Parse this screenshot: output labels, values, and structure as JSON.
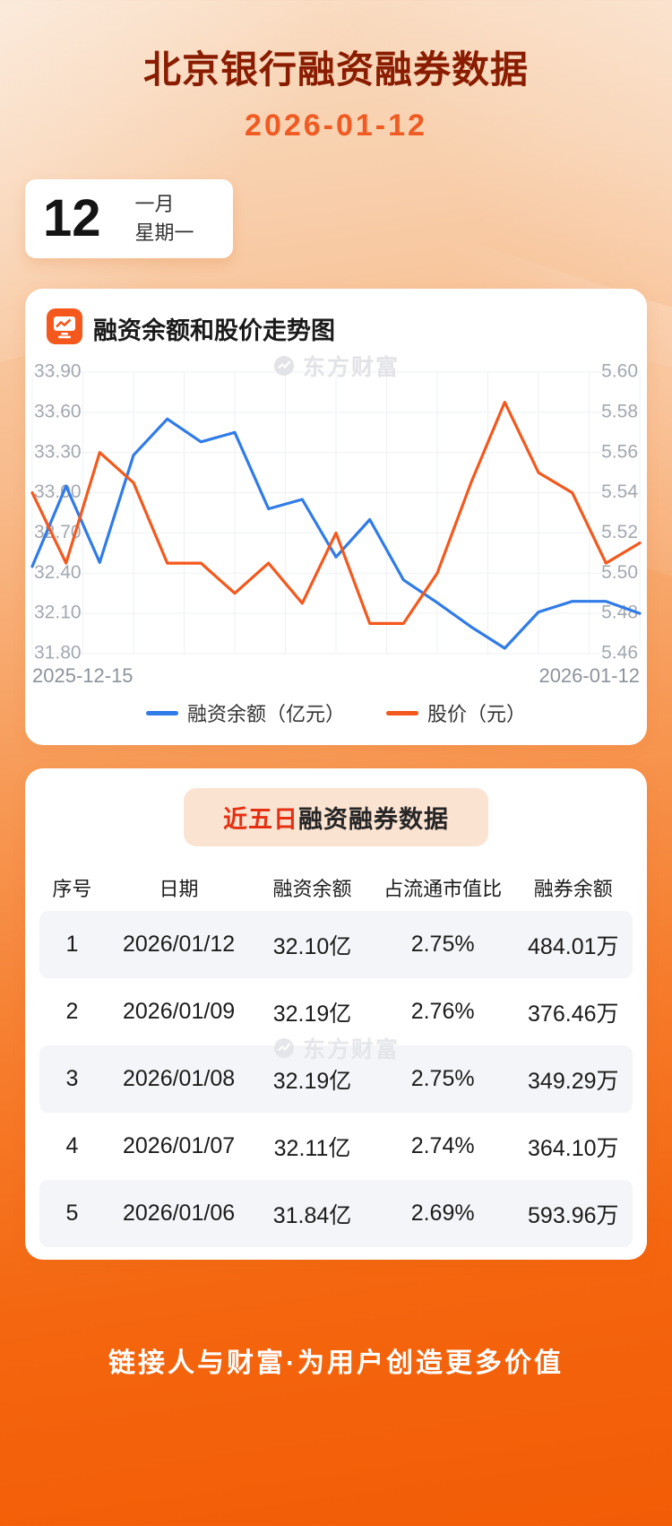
{
  "page": {
    "title": "北京银行融资融券数据",
    "subtitle_date": "2026-01-12",
    "footer": "链接人与财富·为用户创造更多价值"
  },
  "calendar": {
    "day": "12",
    "month": "一月",
    "weekday": "星期一"
  },
  "chart_section": {
    "heading": "融资余额和股价走势图",
    "watermark": "东方财富"
  },
  "chart_data": {
    "type": "line",
    "title": "融资余额和股价走势图",
    "x_range": [
      "2025-12-15",
      "2026-01-12"
    ],
    "grid": true,
    "legend_position": "bottom",
    "left_axis": {
      "label": "融资余额（亿元）",
      "min": 31.8,
      "max": 33.9,
      "tick_labels": [
        "33.90",
        "33.60",
        "33.30",
        "33.00",
        "32.70",
        "32.40",
        "32.10",
        "31.80"
      ]
    },
    "right_axis": {
      "label": "股价（元）",
      "min": 5.46,
      "max": 5.6,
      "tick_labels": [
        "5.60",
        "5.58",
        "5.56",
        "5.54",
        "5.52",
        "5.50",
        "5.48",
        "5.46"
      ]
    },
    "series": [
      {
        "name": "融资余额（亿元）",
        "axis": "left",
        "color": "#2f7be8",
        "values": [
          32.45,
          33.05,
          32.48,
          33.28,
          33.55,
          33.38,
          33.45,
          32.88,
          32.95,
          32.52,
          32.8,
          32.35,
          32.18,
          32.0,
          31.84,
          32.11,
          32.19,
          32.19,
          32.1
        ]
      },
      {
        "name": "股价（元）",
        "axis": "right",
        "color": "#f4581c",
        "values": [
          5.54,
          5.505,
          5.56,
          5.545,
          5.505,
          5.505,
          5.49,
          5.505,
          5.485,
          5.52,
          5.475,
          5.475,
          5.5,
          5.545,
          5.585,
          5.55,
          5.54,
          5.505,
          5.515
        ]
      }
    ]
  },
  "table_section": {
    "title_highlight": "近五日",
    "title_rest": "融资融券数据",
    "watermark": "东方财富",
    "columns": [
      "序号",
      "日期",
      "融资余额",
      "占流通市值比",
      "融券余额"
    ],
    "rows": [
      [
        "1",
        "2026/01/12",
        "32.10亿",
        "2.75%",
        "484.01万"
      ],
      [
        "2",
        "2026/01/09",
        "32.19亿",
        "2.76%",
        "376.46万"
      ],
      [
        "3",
        "2026/01/08",
        "32.19亿",
        "2.75%",
        "349.29万"
      ],
      [
        "4",
        "2026/01/07",
        "32.11亿",
        "2.74%",
        "364.10万"
      ],
      [
        "5",
        "2026/01/06",
        "31.84亿",
        "2.69%",
        "593.96万"
      ]
    ]
  },
  "colors": {
    "accent_orange": "#f4581c",
    "series_blue": "#2f7be8",
    "title_maroon": "#8a1c00",
    "date_orange": "#f15a22",
    "grid_gray": "#eef0f3"
  }
}
